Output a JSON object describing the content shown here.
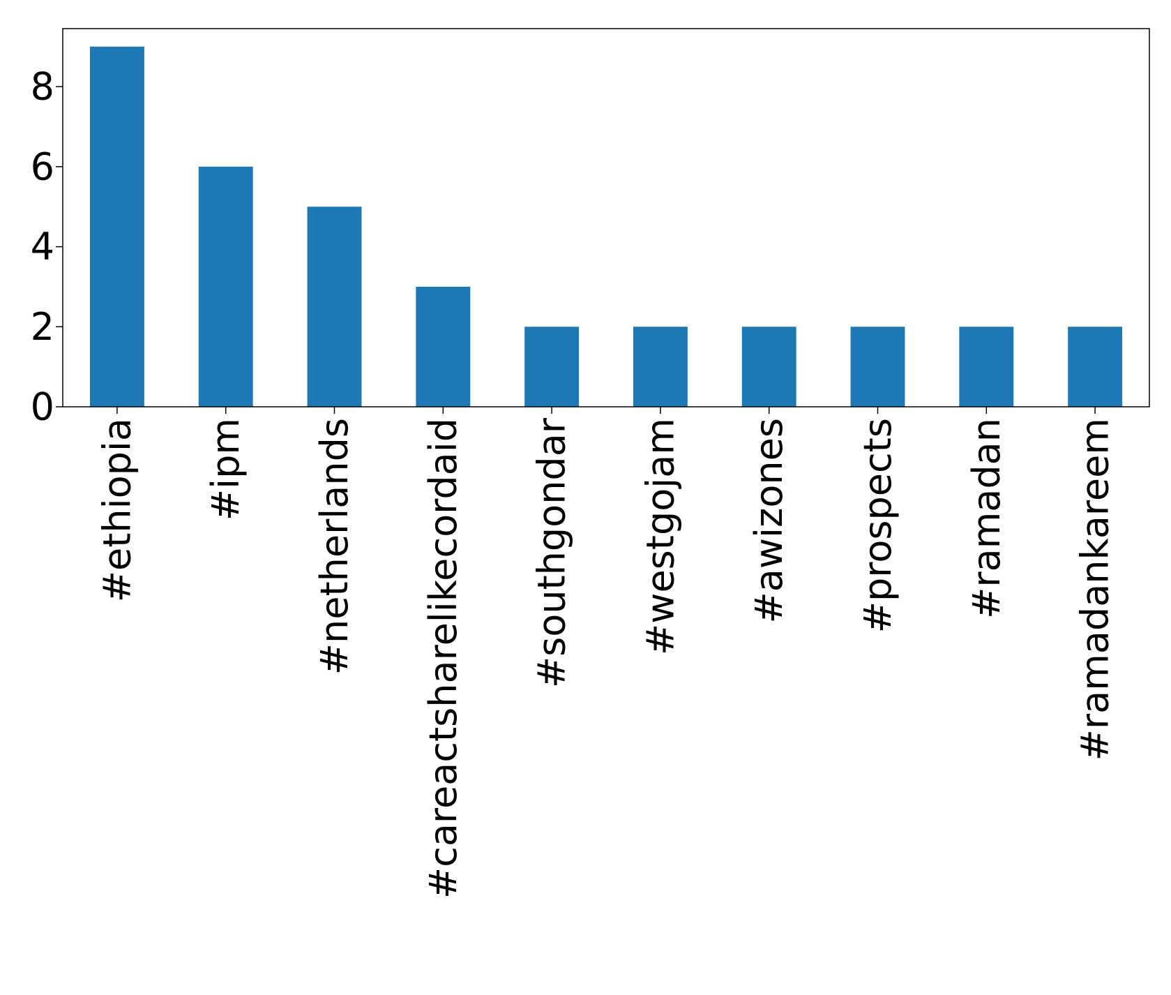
{
  "chart_data": {
    "type": "bar",
    "title": "",
    "xlabel": "",
    "ylabel": "",
    "categories": [
      "#ethiopia",
      "#ipm",
      "#netherlands",
      "#careactsharelikecordaid",
      "#southgondar",
      "#westgojam",
      "#awizones",
      "#prospects",
      "#ramadan",
      "#ramadankareem"
    ],
    "values": [
      9,
      6,
      5,
      3,
      2,
      2,
      2,
      2,
      2,
      2
    ],
    "ylim": [
      0,
      9.45
    ],
    "yticks": [
      0,
      2,
      4,
      6,
      8
    ],
    "grid": false,
    "legend": "none",
    "bar_color": "#1f77b4"
  }
}
